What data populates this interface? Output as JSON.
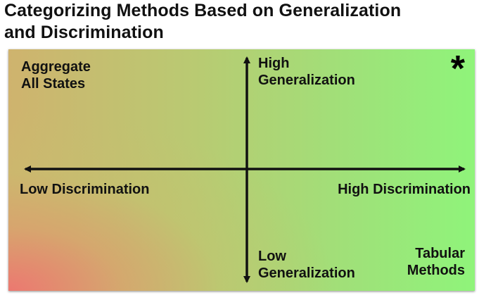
{
  "title": {
    "line1": "Categorizing Methods Based on Generalization",
    "line2": "and Discrimination"
  },
  "diagram": {
    "top_left_label": [
      "Aggregate",
      "All States"
    ],
    "top_axis_label": [
      "High",
      "Generalization"
    ],
    "top_right_marker": "*",
    "left_axis_label": "Low Discrimination",
    "right_axis_label": "High Discrimination",
    "bottom_axis_label": [
      "Low",
      "Generalization"
    ],
    "bottom_right_label": [
      "Tabular",
      "Methods"
    ],
    "colors": {
      "low_corner": "#ec7870",
      "high_corner": "#8ff47a",
      "axis": "#111111"
    }
  }
}
